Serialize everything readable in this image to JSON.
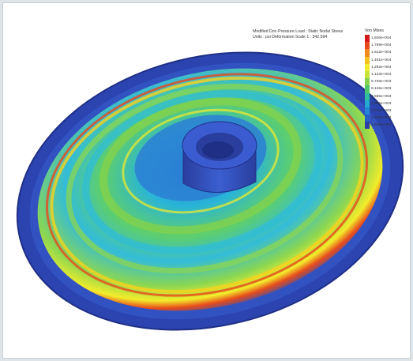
{
  "caption": {
    "line1": "Modified Doc-Pressure Load : Static Nodal Stress",
    "line2": "Units : psi   Deformation Scale  1 : 342.594"
  },
  "legend": {
    "title": "Von Mises",
    "levels": [
      {
        "label": "1.926e+004",
        "color": "#d7191c"
      },
      {
        "label": "1.769e+004",
        "color": "#e8491c"
      },
      {
        "label": "1.612e+004",
        "color": "#f08a1c"
      },
      {
        "label": "1.451e+004",
        "color": "#f7c21c"
      },
      {
        "label": "1.292e+004",
        "color": "#f2ec2a"
      },
      {
        "label": "1.133e+004",
        "color": "#c7e43a"
      },
      {
        "label": "9.736e+003",
        "color": "#86d24a"
      },
      {
        "label": "8.146e+003",
        "color": "#4cc86a"
      },
      {
        "label": "6.555e+003",
        "color": "#2dbf9c"
      },
      {
        "label": "4.965e+003",
        "color": "#23a8d0"
      },
      {
        "label": "3.374e+003",
        "color": "#1e88d6"
      },
      {
        "label": "1.783e+003",
        "color": "#2460c4"
      },
      {
        "label": "1.926e+002",
        "color": "#2a3ea6"
      }
    ]
  }
}
